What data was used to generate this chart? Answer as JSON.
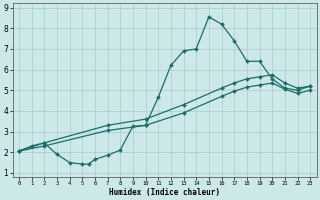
{
  "title": "",
  "xlabel": "Humidex (Indice chaleur)",
  "xlim": [
    -0.5,
    23.5
  ],
  "ylim": [
    0.8,
    9.2
  ],
  "xticks": [
    0,
    1,
    2,
    3,
    4,
    5,
    6,
    7,
    8,
    9,
    10,
    11,
    12,
    13,
    14,
    15,
    16,
    17,
    18,
    19,
    20,
    21,
    22,
    23
  ],
  "yticks": [
    1,
    2,
    3,
    4,
    5,
    6,
    7,
    8,
    9
  ],
  "bg_color": "#cce8e8",
  "grid_color": "#aacccc",
  "line_color": "#1a6e6a",
  "curve1_x": [
    0,
    1,
    2,
    3,
    4,
    5,
    5.5,
    6,
    7,
    8,
    9,
    10,
    11,
    12,
    13,
    14,
    15,
    16,
    17,
    18,
    19,
    20,
    21,
    22,
    23
  ],
  "curve1_y": [
    2.05,
    2.3,
    2.45,
    1.9,
    1.5,
    1.42,
    1.42,
    1.65,
    1.85,
    2.1,
    3.25,
    3.3,
    4.65,
    6.2,
    6.9,
    7.0,
    8.55,
    8.2,
    7.4,
    6.4,
    6.4,
    5.55,
    5.1,
    5.0,
    5.2
  ],
  "curve2_x": [
    0,
    2,
    7,
    10,
    13,
    16,
    17,
    18,
    19,
    20,
    21,
    22,
    23
  ],
  "curve2_y": [
    2.05,
    2.45,
    3.3,
    3.6,
    4.3,
    5.1,
    5.35,
    5.55,
    5.65,
    5.75,
    5.35,
    5.1,
    5.2
  ],
  "curve3_x": [
    0,
    2,
    7,
    10,
    13,
    16,
    17,
    18,
    19,
    20,
    21,
    22,
    23
  ],
  "curve3_y": [
    2.05,
    2.3,
    3.05,
    3.3,
    3.9,
    4.7,
    4.95,
    5.15,
    5.25,
    5.35,
    5.05,
    4.85,
    5.0
  ],
  "marker_size": 2.0,
  "line_width": 0.9
}
